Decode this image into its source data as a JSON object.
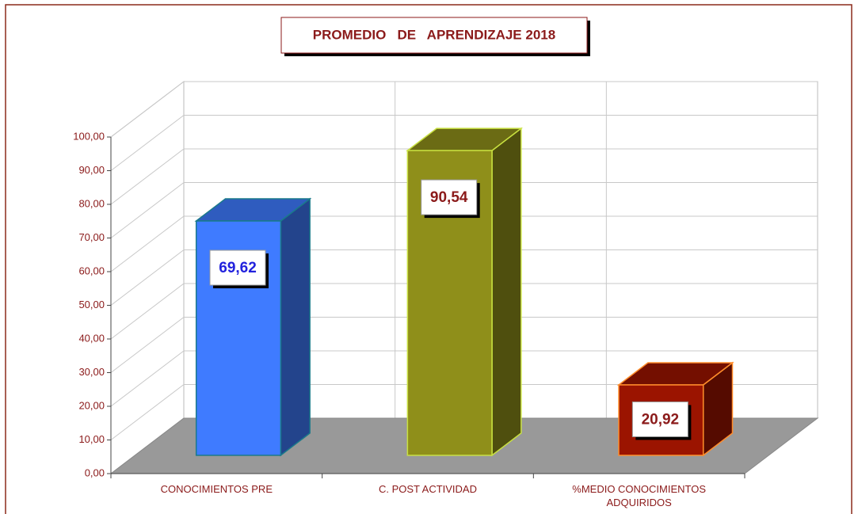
{
  "chart_data": {
    "type": "bar3d",
    "title": "PROMEDIO   DE   APRENDIZAJE 2018",
    "categories": [
      "CONOCIMIENTOS PRE",
      "C. POST ACTIVIDAD",
      "%MEDIO CONOCIMIENTOS ADQUIRIDOS"
    ],
    "values": [
      69.62,
      90.54,
      20.92
    ],
    "value_labels": [
      "69,62",
      "90,54",
      "20,92"
    ],
    "colors": [
      "#3f7bff",
      "#8f8f1a",
      "#9b1400"
    ],
    "label_colors": [
      "#2222dd",
      "#8b1a1a",
      "#8b1a1a"
    ],
    "ylim": [
      0,
      100
    ],
    "yticks": [
      {
        "value": 0,
        "label": "0,00"
      },
      {
        "value": 10,
        "label": "10,00"
      },
      {
        "value": 20,
        "label": "20,00"
      },
      {
        "value": 30,
        "label": "30,00"
      },
      {
        "value": 40,
        "label": "40,00"
      },
      {
        "value": 50,
        "label": "50,00"
      },
      {
        "value": 60,
        "label": "60,00"
      },
      {
        "value": 70,
        "label": "70,00"
      },
      {
        "value": 80,
        "label": "80,00"
      },
      {
        "value": 90,
        "label": "90,00"
      },
      {
        "value": 100,
        "label": "100,00"
      }
    ],
    "grid": true
  }
}
